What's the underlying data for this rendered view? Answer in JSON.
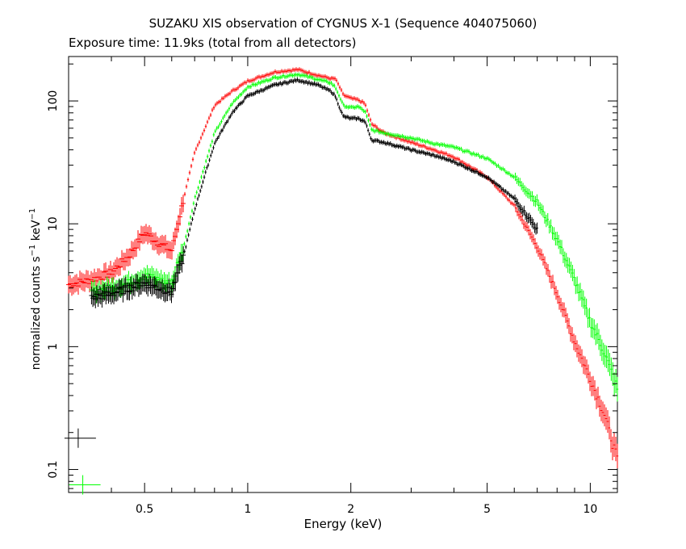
{
  "chart_data": {
    "type": "scatter",
    "title": "SUZAKU XIS observation of CYGNUS X-1 (Sequence 404075060)",
    "subtitle": "Exposure time: 11.9ks (total from all detectors)",
    "xlabel": "Energy (keV)",
    "ylabel": {
      "part1": "normalized counts s",
      "sup1": "−1",
      "part2": " keV",
      "sup2": "−1"
    },
    "xscale": "log",
    "yscale": "log",
    "xlim": [
      0.3,
      12
    ],
    "ylim": [
      0.065,
      230
    ],
    "xticks": [
      {
        "value": 0.5,
        "label": "0.5"
      },
      {
        "value": 1,
        "label": "1"
      },
      {
        "value": 2,
        "label": "2"
      },
      {
        "value": 5,
        "label": "5"
      },
      {
        "value": 10,
        "label": "10"
      }
    ],
    "yticks": [
      {
        "value": 0.1,
        "label": "0.1"
      },
      {
        "value": 1,
        "label": "1"
      },
      {
        "value": 10,
        "label": "10"
      },
      {
        "value": 100,
        "label": "100"
      }
    ],
    "series": [
      {
        "color": "#ff0000",
        "x": [
          0.3,
          0.35,
          0.4,
          0.45,
          0.5,
          0.55,
          0.6,
          0.65,
          0.7,
          0.75,
          0.8,
          0.9,
          1.0,
          1.2,
          1.4,
          1.6,
          1.75,
          1.8,
          1.85,
          1.9,
          2.0,
          2.1,
          2.2,
          2.3,
          2.5,
          3.0,
          3.5,
          4.0,
          5.0,
          6.0,
          7.0,
          8.0,
          9.0,
          10.0,
          11.0,
          12.0
        ],
        "y": [
          3.2,
          3.5,
          4.0,
          5.5,
          8.5,
          7.0,
          6.0,
          16,
          38,
          60,
          92,
          120,
          145,
          172,
          180,
          162,
          152,
          152,
          132,
          112,
          105,
          102,
          95,
          65,
          55,
          46,
          40,
          35,
          24,
          14,
          6.5,
          2.7,
          1.1,
          0.55,
          0.28,
          0.12
        ]
      },
      {
        "color": "#00ff00",
        "x": [
          0.35,
          0.4,
          0.45,
          0.5,
          0.55,
          0.6,
          0.65,
          0.7,
          0.75,
          0.8,
          0.9,
          1.0,
          1.2,
          1.4,
          1.6,
          1.75,
          1.8,
          1.85,
          1.9,
          2.0,
          2.1,
          2.2,
          2.3,
          2.5,
          3.0,
          3.5,
          4.0,
          5.0,
          6.0,
          7.0,
          8.0,
          9.0,
          10.0,
          11.0,
          12.0
        ],
        "y": [
          2.8,
          3.0,
          3.3,
          3.8,
          3.5,
          3.2,
          6.5,
          16,
          30,
          55,
          95,
          130,
          155,
          165,
          150,
          140,
          130,
          110,
          92,
          88,
          90,
          82,
          58,
          55,
          50,
          45,
          42,
          34,
          24,
          15,
          7.5,
          3.5,
          1.6,
          0.9,
          0.45
        ]
      },
      {
        "color": "#000000",
        "x": [
          0.35,
          0.4,
          0.45,
          0.5,
          0.55,
          0.6,
          0.65,
          0.7,
          0.75,
          0.8,
          0.9,
          1.0,
          1.2,
          1.4,
          1.6,
          1.75,
          1.8,
          1.85,
          1.9,
          2.0,
          2.1,
          2.2,
          2.3,
          2.5,
          3.0,
          3.5,
          4.0,
          5.0,
          6.0,
          7.0
        ],
        "y": [
          2.5,
          2.7,
          3.0,
          3.3,
          3.0,
          2.8,
          5.5,
          13,
          25,
          45,
          80,
          110,
          135,
          148,
          135,
          120,
          110,
          90,
          75,
          72,
          72,
          68,
          48,
          46,
          40,
          36,
          32,
          24,
          16,
          9
        ]
      }
    ],
    "markers": [
      {
        "color": "#000000",
        "x": 0.32,
        "y": 0.18
      },
      {
        "color": "#00ff00",
        "x": 0.33,
        "y": 0.075
      }
    ]
  }
}
